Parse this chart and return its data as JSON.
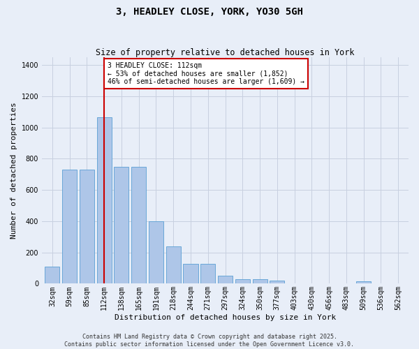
{
  "title": "3, HEADLEY CLOSE, YORK, YO30 5GH",
  "subtitle": "Size of property relative to detached houses in York",
  "xlabel": "Distribution of detached houses by size in York",
  "ylabel": "Number of detached properties",
  "categories": [
    "32sqm",
    "59sqm",
    "85sqm",
    "112sqm",
    "138sqm",
    "165sqm",
    "191sqm",
    "218sqm",
    "244sqm",
    "271sqm",
    "297sqm",
    "324sqm",
    "350sqm",
    "377sqm",
    "403sqm",
    "430sqm",
    "456sqm",
    "483sqm",
    "509sqm",
    "536sqm",
    "562sqm"
  ],
  "values": [
    110,
    730,
    730,
    1065,
    750,
    750,
    400,
    240,
    125,
    125,
    50,
    28,
    28,
    20,
    0,
    0,
    0,
    0,
    14,
    0,
    0
  ],
  "bar_color": "#aec6e8",
  "bar_edge_color": "#5a9fd4",
  "highlight_bar_index": 3,
  "annotation_text": "3 HEADLEY CLOSE: 112sqm\n← 53% of detached houses are smaller (1,852)\n46% of semi-detached houses are larger (1,609) →",
  "annotation_box_color": "#ffffff",
  "annotation_box_edge_color": "#cc0000",
  "annotation_text_color": "#000000",
  "highlight_line_color": "#cc0000",
  "background_color": "#e8eef8",
  "grid_color": "#c8d0e0",
  "footer_text": "Contains HM Land Registry data © Crown copyright and database right 2025.\nContains public sector information licensed under the Open Government Licence v3.0.",
  "ylim": [
    0,
    1450
  ],
  "yticks": [
    0,
    200,
    400,
    600,
    800,
    1000,
    1200,
    1400
  ],
  "title_fontsize": 10,
  "subtitle_fontsize": 8.5,
  "axis_label_fontsize": 8,
  "tick_fontsize": 7,
  "annotation_fontsize": 7,
  "footer_fontsize": 6
}
